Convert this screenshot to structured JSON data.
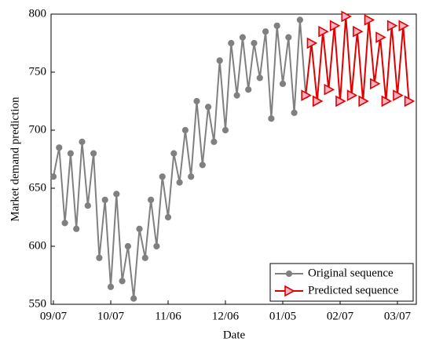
{
  "chart_data": {
    "type": "line",
    "xlabel": "Date",
    "ylabel": "Market demand prediction",
    "categories": [
      "09/07",
      null,
      null,
      null,
      null,
      null,
      null,
      null,
      null,
      null,
      "10/07",
      null,
      null,
      null,
      null,
      null,
      null,
      null,
      null,
      null,
      "11/06",
      null,
      null,
      null,
      null,
      null,
      null,
      null,
      null,
      null,
      "12/06",
      null,
      null,
      null,
      null,
      null,
      null,
      null,
      null,
      null,
      "01/05",
      null,
      null,
      null,
      null,
      null,
      null,
      null,
      null,
      null,
      "02/07",
      null,
      null,
      null,
      null,
      null,
      null,
      null,
      null,
      null,
      "03/07",
      null,
      null
    ],
    "series": [
      {
        "name": "Original sequence",
        "color": "#808080",
        "marker": "circle",
        "values": [
          660,
          685,
          620,
          680,
          615,
          690,
          635,
          680,
          590,
          640,
          565,
          645,
          570,
          600,
          555,
          615,
          590,
          640,
          600,
          660,
          625,
          680,
          655,
          700,
          660,
          725,
          670,
          720,
          690,
          760,
          700,
          775,
          730,
          780,
          735,
          775,
          745,
          785,
          710,
          790,
          740,
          780,
          715,
          795,
          730,
          null,
          null,
          null,
          null,
          null,
          null,
          null,
          null,
          null,
          null,
          null,
          null,
          null,
          null,
          null,
          null,
          null,
          null
        ]
      },
      {
        "name": "Predicted sequence",
        "color": "#e00000",
        "marker": "triangle-right",
        "values": [
          null,
          null,
          null,
          null,
          null,
          null,
          null,
          null,
          null,
          null,
          null,
          null,
          null,
          null,
          null,
          null,
          null,
          null,
          null,
          null,
          null,
          null,
          null,
          null,
          null,
          null,
          null,
          null,
          null,
          null,
          null,
          null,
          null,
          null,
          null,
          null,
          null,
          null,
          null,
          null,
          null,
          null,
          null,
          null,
          730,
          775,
          725,
          785,
          735,
          790,
          725,
          798,
          730,
          785,
          725,
          795,
          740,
          780,
          725,
          790,
          730,
          790,
          725
        ]
      }
    ],
    "ylim": [
      550,
      800
    ],
    "yticks": [
      550,
      600,
      650,
      700,
      750,
      800
    ],
    "grid": false,
    "legend": "lower right"
  }
}
